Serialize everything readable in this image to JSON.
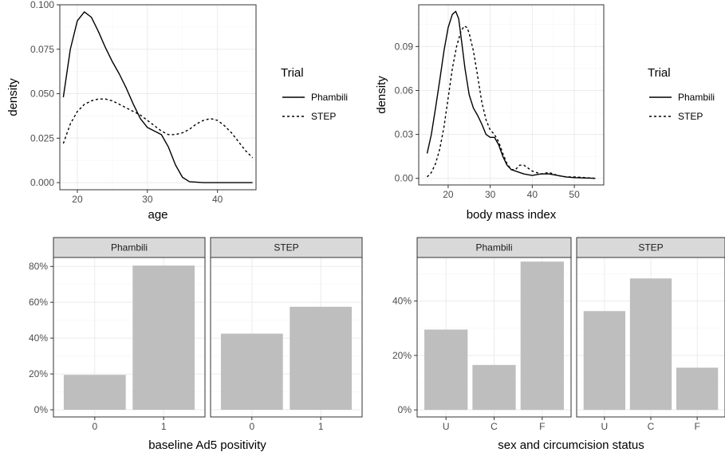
{
  "chart_data": [
    {
      "type": "line",
      "id": "age-density",
      "xlabel": "age",
      "ylabel": "density",
      "xlim": [
        17.5,
        45.5
      ],
      "ylim": [
        -0.004,
        0.1
      ],
      "xticks": [
        20,
        30,
        40
      ],
      "yticks": [
        0.0,
        0.025,
        0.05,
        0.075,
        0.1
      ],
      "yticklabels": [
        "0.000",
        "0.025",
        "0.050",
        "0.075",
        "0.100"
      ],
      "grid": true,
      "legend": {
        "title": "Trial",
        "position": "right"
      },
      "series": [
        {
          "name": "Phambili",
          "linestyle": "solid",
          "x": [
            18,
            19,
            20,
            21,
            22,
            23,
            24,
            25,
            26,
            27,
            28,
            29,
            30,
            31,
            32,
            33,
            34,
            35,
            36,
            38,
            40,
            42,
            44,
            45
          ],
          "y": [
            0.048,
            0.075,
            0.091,
            0.096,
            0.093,
            0.085,
            0.076,
            0.068,
            0.061,
            0.053,
            0.044,
            0.036,
            0.031,
            0.029,
            0.027,
            0.02,
            0.01,
            0.003,
            0.0005,
            0.0,
            0.0,
            0.0,
            0.0,
            0.0
          ]
        },
        {
          "name": "STEP",
          "linestyle": "dashed",
          "x": [
            18,
            19,
            20,
            21,
            22,
            23,
            24,
            25,
            26,
            27,
            28,
            29,
            30,
            31,
            32,
            33,
            34,
            35,
            36,
            37,
            38,
            39,
            40,
            41,
            42,
            43,
            44,
            45
          ],
          "y": [
            0.022,
            0.033,
            0.04,
            0.044,
            0.046,
            0.047,
            0.047,
            0.046,
            0.044,
            0.042,
            0.04,
            0.038,
            0.035,
            0.032,
            0.029,
            0.027,
            0.027,
            0.028,
            0.03,
            0.033,
            0.035,
            0.036,
            0.035,
            0.032,
            0.028,
            0.023,
            0.018,
            0.014
          ]
        }
      ]
    },
    {
      "type": "line",
      "id": "bmi-density",
      "xlabel": "body mass index",
      "ylabel": "density",
      "xlim": [
        13.0,
        57.0
      ],
      "ylim": [
        -0.0045,
        0.1185
      ],
      "xticks": [
        20,
        30,
        40,
        50
      ],
      "yticks": [
        0.0,
        0.03,
        0.06,
        0.09
      ],
      "yticklabels": [
        "0.00",
        "0.03",
        "0.06",
        "0.09"
      ],
      "grid": true,
      "legend": {
        "title": "Trial",
        "position": "right"
      },
      "series": [
        {
          "name": "Phambili",
          "linestyle": "solid",
          "x": [
            15,
            16,
            17,
            18,
            19,
            20,
            21,
            21.8,
            22.5,
            23,
            24,
            25,
            26,
            27,
            28,
            29,
            30,
            31,
            32,
            33,
            34,
            35,
            36,
            38,
            40,
            42,
            44,
            46,
            48,
            50,
            55
          ],
          "y": [
            0.017,
            0.03,
            0.048,
            0.067,
            0.087,
            0.103,
            0.112,
            0.114,
            0.109,
            0.098,
            0.075,
            0.057,
            0.048,
            0.043,
            0.037,
            0.03,
            0.028,
            0.028,
            0.023,
            0.015,
            0.009,
            0.006,
            0.005,
            0.003,
            0.002,
            0.003,
            0.003,
            0.002,
            0.001,
            0.0005,
            0.0
          ]
        },
        {
          "name": "STEP",
          "linestyle": "dashed",
          "x": [
            15,
            16,
            17,
            18,
            19,
            20,
            21,
            22,
            23,
            23.8,
            24.5,
            25,
            26,
            27,
            28,
            29,
            30,
            31,
            32,
            33,
            34,
            35,
            36,
            37,
            38,
            40,
            42,
            44,
            46,
            48,
            50,
            55
          ],
          "y": [
            0.001,
            0.004,
            0.01,
            0.02,
            0.035,
            0.055,
            0.075,
            0.09,
            0.1,
            0.104,
            0.103,
            0.099,
            0.087,
            0.07,
            0.052,
            0.04,
            0.033,
            0.03,
            0.025,
            0.017,
            0.01,
            0.006,
            0.006,
            0.009,
            0.009,
            0.005,
            0.003,
            0.004,
            0.002,
            0.001,
            0.001,
            0.0
          ]
        }
      ]
    },
    {
      "type": "bar",
      "id": "ad5-positivity",
      "xlabel": "baseline Ad5 positivity",
      "ylabel": "",
      "categories": [
        "0",
        "1"
      ],
      "ylim": [
        -0.04,
        0.85
      ],
      "yticks": [
        0.0,
        0.2,
        0.4,
        0.6,
        0.8
      ],
      "yticklabels": [
        "0%",
        "20%",
        "40%",
        "60%",
        "80%"
      ],
      "grid": true,
      "facets": [
        {
          "name": "Phambili",
          "values": [
            0.195,
            0.805
          ]
        },
        {
          "name": "STEP",
          "values": [
            0.425,
            0.575
          ]
        }
      ]
    },
    {
      "type": "bar",
      "id": "sex-circumcision",
      "xlabel": "sex and circumcision status",
      "ylabel": "",
      "categories": [
        "U",
        "C",
        "F"
      ],
      "ylim": [
        -0.026,
        0.56
      ],
      "yticks": [
        0.0,
        0.2,
        0.4
      ],
      "yticklabels": [
        "0%",
        "20%",
        "40%"
      ],
      "grid": true,
      "facets": [
        {
          "name": "Phambili",
          "values": [
            0.295,
            0.165,
            0.545
          ]
        },
        {
          "name": "STEP",
          "values": [
            0.363,
            0.483,
            0.155
          ]
        }
      ]
    }
  ],
  "colors": {
    "bar_fill": "#bebebe",
    "line": "#000000",
    "strip_fill": "#d9d9d9"
  }
}
